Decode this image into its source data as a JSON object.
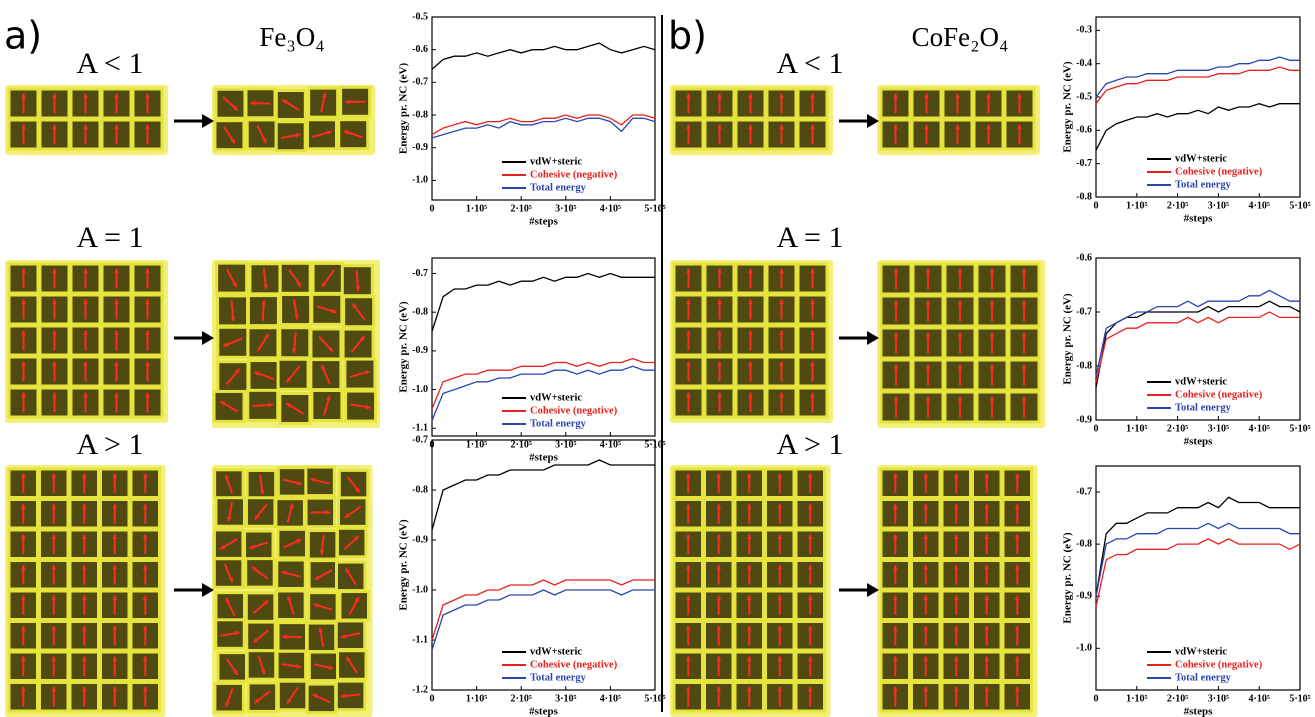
{
  "panels": [
    {
      "label": "a)",
      "material": "Fe₃O₄",
      "conditions": [
        "A < 1",
        "A = 1",
        "A > 1"
      ]
    },
    {
      "label": "b)",
      "material": "CoFe₂O₄",
      "conditions": [
        "A < 1",
        "A = 1",
        "A > 1"
      ]
    }
  ],
  "chart_data": [
    {
      "type": "line",
      "xlabel": "#steps",
      "ylabel": "Energy pr. NC (eV)",
      "legend": "lower right",
      "x": [
        0,
        25000,
        50000,
        75000,
        100000,
        125000,
        150000,
        175000,
        200000,
        225000,
        250000,
        275000,
        300000,
        325000,
        350000,
        375000,
        400000,
        425000,
        450000,
        475000,
        500000
      ],
      "xlim": [
        0,
        500000
      ],
      "xticks": [
        0,
        {
          "value": 100000,
          "label": "1·10⁵"
        },
        {
          "value": 200000,
          "label": "2·10⁵"
        },
        {
          "value": 300000,
          "label": "3·10⁵"
        },
        {
          "value": 400000,
          "label": "4·10⁵"
        },
        {
          "value": 500000,
          "label": "5·10⁵"
        }
      ],
      "ylim": [
        -1.06,
        -0.5
      ],
      "yticks": [
        -0.5,
        -0.6,
        -0.7,
        -0.8,
        -0.9,
        {
          "value": -1,
          "label": "-1.0"
        }
      ],
      "series": [
        {
          "name": "vdW+steric",
          "color": "#000000",
          "values": [
            -0.66,
            -0.63,
            -0.62,
            -0.62,
            -0.61,
            -0.62,
            -0.61,
            -0.6,
            -0.61,
            -0.6,
            -0.6,
            -0.59,
            -0.6,
            -0.6,
            -0.59,
            -0.58,
            -0.6,
            -0.61,
            -0.6,
            -0.59,
            -0.6
          ]
        },
        {
          "name": "Cohesive (negative)",
          "color": "#e8211e",
          "values": [
            -0.86,
            -0.84,
            -0.83,
            -0.82,
            -0.83,
            -0.82,
            -0.82,
            -0.81,
            -0.82,
            -0.82,
            -0.81,
            -0.81,
            -0.8,
            -0.81,
            -0.8,
            -0.8,
            -0.81,
            -0.83,
            -0.8,
            -0.8,
            -0.81
          ]
        },
        {
          "name": "Total energy",
          "color": "#2b46b0",
          "values": [
            -0.87,
            -0.86,
            -0.85,
            -0.84,
            -0.84,
            -0.83,
            -0.84,
            -0.82,
            -0.83,
            -0.83,
            -0.82,
            -0.82,
            -0.81,
            -0.82,
            -0.81,
            -0.81,
            -0.82,
            -0.85,
            -0.81,
            -0.81,
            -0.82
          ]
        }
      ]
    },
    {
      "type": "line",
      "xlabel": "#steps",
      "ylabel": "Energy pr. NC (eV)",
      "legend": "lower right",
      "x": [
        0,
        25000,
        50000,
        75000,
        100000,
        125000,
        150000,
        175000,
        200000,
        225000,
        250000,
        275000,
        300000,
        325000,
        350000,
        375000,
        400000,
        425000,
        450000,
        475000,
        500000
      ],
      "xlim": [
        0,
        500000
      ],
      "xticks": [
        0,
        {
          "value": 100000,
          "label": "1·10⁵"
        },
        {
          "value": 200000,
          "label": "2·10⁵"
        },
        {
          "value": 300000,
          "label": "3·10⁵"
        },
        {
          "value": 400000,
          "label": "4·10⁵"
        },
        {
          "value": 500000,
          "label": "5·10⁵"
        }
      ],
      "ylim": [
        -1.12,
        -0.66
      ],
      "yticks": [
        -0.7,
        -0.8,
        -0.9,
        {
          "value": -1,
          "label": "-1.0"
        },
        -1.1
      ],
      "series": [
        {
          "name": "vdW+steric",
          "color": "#000000",
          "values": [
            -0.85,
            -0.76,
            -0.74,
            -0.74,
            -0.73,
            -0.73,
            -0.72,
            -0.73,
            -0.72,
            -0.72,
            -0.71,
            -0.72,
            -0.71,
            -0.71,
            -0.7,
            -0.71,
            -0.7,
            -0.71,
            -0.71,
            -0.71,
            -0.71
          ]
        },
        {
          "name": "Cohesive (negative)",
          "color": "#e8211e",
          "values": [
            -1.05,
            -0.98,
            -0.97,
            -0.96,
            -0.96,
            -0.95,
            -0.95,
            -0.95,
            -0.94,
            -0.94,
            -0.94,
            -0.93,
            -0.93,
            -0.94,
            -0.93,
            -0.94,
            -0.93,
            -0.93,
            -0.92,
            -0.93,
            -0.93
          ]
        },
        {
          "name": "Total energy",
          "color": "#2b46b0",
          "values": [
            -1.08,
            -1.01,
            -1.0,
            -0.99,
            -0.98,
            -0.98,
            -0.97,
            -0.97,
            -0.96,
            -0.96,
            -0.96,
            -0.95,
            -0.95,
            -0.96,
            -0.95,
            -0.96,
            -0.95,
            -0.95,
            -0.94,
            -0.95,
            -0.95
          ]
        }
      ]
    },
    {
      "type": "line",
      "xlabel": "#steps",
      "ylabel": "Energy pr. NC (eV)",
      "legend": "lower right",
      "x": [
        0,
        25000,
        50000,
        75000,
        100000,
        125000,
        150000,
        175000,
        200000,
        225000,
        250000,
        275000,
        300000,
        325000,
        350000,
        375000,
        400000,
        425000,
        450000,
        475000,
        500000
      ],
      "xlim": [
        0,
        500000
      ],
      "xticks": [
        0,
        {
          "value": 100000,
          "label": "1·10⁵"
        },
        {
          "value": 200000,
          "label": "2·10⁵"
        },
        {
          "value": 300000,
          "label": "3·10⁵"
        },
        {
          "value": 400000,
          "label": "4·10⁵"
        },
        {
          "value": 500000,
          "label": "5·10⁵"
        }
      ],
      "ylim": [
        -1.2,
        -0.7
      ],
      "yticks": [
        -0.7,
        -0.8,
        -0.9,
        {
          "value": -1,
          "label": "-1.0"
        },
        -1.1,
        -1.2
      ],
      "series": [
        {
          "name": "vdW+steric",
          "color": "#000000",
          "values": [
            -0.88,
            -0.8,
            -0.79,
            -0.78,
            -0.78,
            -0.77,
            -0.77,
            -0.76,
            -0.76,
            -0.76,
            -0.76,
            -0.75,
            -0.75,
            -0.75,
            -0.75,
            -0.74,
            -0.75,
            -0.75,
            -0.75,
            -0.75,
            -0.75
          ]
        },
        {
          "name": "Cohesive (negative)",
          "color": "#e8211e",
          "values": [
            -1.1,
            -1.03,
            -1.02,
            -1.01,
            -1.01,
            -1.0,
            -1.0,
            -0.99,
            -0.99,
            -0.99,
            -0.98,
            -0.99,
            -0.98,
            -0.98,
            -0.98,
            -0.98,
            -0.98,
            -0.99,
            -0.98,
            -0.98,
            -0.98
          ]
        },
        {
          "name": "Total energy",
          "color": "#2b46b0",
          "values": [
            -1.12,
            -1.05,
            -1.04,
            -1.03,
            -1.03,
            -1.02,
            -1.02,
            -1.01,
            -1.01,
            -1.01,
            -1.0,
            -1.01,
            -1.0,
            -1.0,
            -1.0,
            -1.0,
            -1.0,
            -1.01,
            -1.0,
            -1.0,
            -1.0
          ]
        }
      ]
    },
    {
      "type": "line",
      "xlabel": "#steps",
      "ylabel": "Energy pr. NC (eV)",
      "legend": "lower right",
      "x": [
        0,
        25000,
        50000,
        75000,
        100000,
        125000,
        150000,
        175000,
        200000,
        225000,
        250000,
        275000,
        300000,
        325000,
        350000,
        375000,
        400000,
        425000,
        450000,
        475000,
        500000
      ],
      "xlim": [
        0,
        500000
      ],
      "xticks": [
        0,
        {
          "value": 100000,
          "label": "1·10⁵"
        },
        {
          "value": 200000,
          "label": "2·10⁵"
        },
        {
          "value": 300000,
          "label": "3·10⁵"
        },
        {
          "value": 400000,
          "label": "4·10⁵"
        },
        {
          "value": 500000,
          "label": "5·10⁵"
        }
      ],
      "ylim": [
        -0.8,
        -0.26
      ],
      "yticks": [
        -0.3,
        -0.4,
        -0.5,
        -0.6,
        -0.7,
        -0.8
      ],
      "series": [
        {
          "name": "vdW+steric",
          "color": "#000000",
          "values": [
            -0.66,
            -0.6,
            -0.58,
            -0.57,
            -0.56,
            -0.56,
            -0.55,
            -0.56,
            -0.55,
            -0.55,
            -0.54,
            -0.55,
            -0.53,
            -0.54,
            -0.53,
            -0.53,
            -0.52,
            -0.53,
            -0.52,
            -0.52,
            -0.52
          ]
        },
        {
          "name": "Cohesive (negative)",
          "color": "#e8211e",
          "values": [
            -0.52,
            -0.48,
            -0.47,
            -0.46,
            -0.46,
            -0.45,
            -0.45,
            -0.45,
            -0.44,
            -0.44,
            -0.44,
            -0.44,
            -0.43,
            -0.43,
            -0.43,
            -0.42,
            -0.42,
            -0.42,
            -0.41,
            -0.42,
            -0.42
          ]
        },
        {
          "name": "Total energy",
          "color": "#2b46b0",
          "values": [
            -0.5,
            -0.46,
            -0.45,
            -0.44,
            -0.44,
            -0.43,
            -0.43,
            -0.43,
            -0.42,
            -0.42,
            -0.42,
            -0.42,
            -0.41,
            -0.41,
            -0.4,
            -0.4,
            -0.39,
            -0.39,
            -0.38,
            -0.39,
            -0.39
          ]
        }
      ]
    },
    {
      "type": "line",
      "xlabel": "#steps",
      "ylabel": "Energy pr. NC (eV)",
      "legend": "lower right",
      "x": [
        0,
        25000,
        50000,
        75000,
        100000,
        125000,
        150000,
        175000,
        200000,
        225000,
        250000,
        275000,
        300000,
        325000,
        350000,
        375000,
        400000,
        425000,
        450000,
        475000,
        500000
      ],
      "xlim": [
        0,
        500000
      ],
      "xticks": [
        0,
        {
          "value": 100000,
          "label": "1·10⁵"
        },
        {
          "value": 200000,
          "label": "2·10⁵"
        },
        {
          "value": 300000,
          "label": "3·10⁵"
        },
        {
          "value": 400000,
          "label": "4·10⁵"
        },
        {
          "value": 500000,
          "label": "5·10⁵"
        }
      ],
      "ylim": [
        -0.9,
        -0.6
      ],
      "yticks": [
        -0.6,
        -0.7,
        -0.8,
        -0.9
      ],
      "series": [
        {
          "name": "vdW+steric",
          "color": "#000000",
          "values": [
            -0.84,
            -0.74,
            -0.72,
            -0.71,
            -0.71,
            -0.7,
            -0.7,
            -0.7,
            -0.7,
            -0.7,
            -0.7,
            -0.69,
            -0.7,
            -0.69,
            -0.69,
            -0.69,
            -0.69,
            -0.68,
            -0.69,
            -0.69,
            -0.7
          ]
        },
        {
          "name": "Cohesive (negative)",
          "color": "#e8211e",
          "values": [
            -0.83,
            -0.75,
            -0.74,
            -0.73,
            -0.73,
            -0.72,
            -0.72,
            -0.72,
            -0.72,
            -0.71,
            -0.72,
            -0.71,
            -0.72,
            -0.71,
            -0.71,
            -0.71,
            -0.71,
            -0.7,
            -0.71,
            -0.71,
            -0.71
          ]
        },
        {
          "name": "Total energy",
          "color": "#2b46b0",
          "values": [
            -0.82,
            -0.73,
            -0.72,
            -0.71,
            -0.7,
            -0.7,
            -0.69,
            -0.69,
            -0.69,
            -0.68,
            -0.69,
            -0.68,
            -0.68,
            -0.68,
            -0.68,
            -0.67,
            -0.67,
            -0.66,
            -0.67,
            -0.68,
            -0.68
          ]
        }
      ]
    },
    {
      "type": "line",
      "xlabel": "#steps",
      "ylabel": "Energy pr. NC (eV)",
      "legend": "lower right",
      "x": [
        0,
        25000,
        50000,
        75000,
        100000,
        125000,
        150000,
        175000,
        200000,
        225000,
        250000,
        275000,
        300000,
        325000,
        350000,
        375000,
        400000,
        425000,
        450000,
        475000,
        500000
      ],
      "xlim": [
        0,
        500000
      ],
      "xticks": [
        0,
        {
          "value": 100000,
          "label": "1·10⁵"
        },
        {
          "value": 200000,
          "label": "2·10⁵"
        },
        {
          "value": 300000,
          "label": "3·10⁵"
        },
        {
          "value": 400000,
          "label": "4·10⁵"
        },
        {
          "value": 500000,
          "label": "5·10⁵"
        }
      ],
      "ylim": [
        -1.08,
        -0.65
      ],
      "yticks": [
        -0.7,
        -0.8,
        -0.9,
        {
          "value": -1,
          "label": "-1.0"
        }
      ],
      "series": [
        {
          "name": "vdW+steric",
          "color": "#000000",
          "values": [
            -0.9,
            -0.78,
            -0.76,
            -0.76,
            -0.75,
            -0.74,
            -0.74,
            -0.74,
            -0.73,
            -0.73,
            -0.73,
            -0.72,
            -0.73,
            -0.71,
            -0.72,
            -0.72,
            -0.72,
            -0.73,
            -0.73,
            -0.73,
            -0.73
          ]
        },
        {
          "name": "Cohesive (negative)",
          "color": "#e8211e",
          "values": [
            -0.92,
            -0.83,
            -0.82,
            -0.82,
            -0.81,
            -0.81,
            -0.81,
            -0.81,
            -0.8,
            -0.8,
            -0.8,
            -0.79,
            -0.8,
            -0.79,
            -0.8,
            -0.8,
            -0.8,
            -0.8,
            -0.8,
            -0.81,
            -0.8
          ]
        },
        {
          "name": "Total energy",
          "color": "#2b46b0",
          "values": [
            -0.9,
            -0.8,
            -0.79,
            -0.79,
            -0.78,
            -0.78,
            -0.78,
            -0.77,
            -0.77,
            -0.77,
            -0.77,
            -0.76,
            -0.77,
            -0.76,
            -0.77,
            -0.77,
            -0.77,
            -0.77,
            -0.77,
            -0.78,
            -0.78
          ]
        }
      ]
    }
  ]
}
